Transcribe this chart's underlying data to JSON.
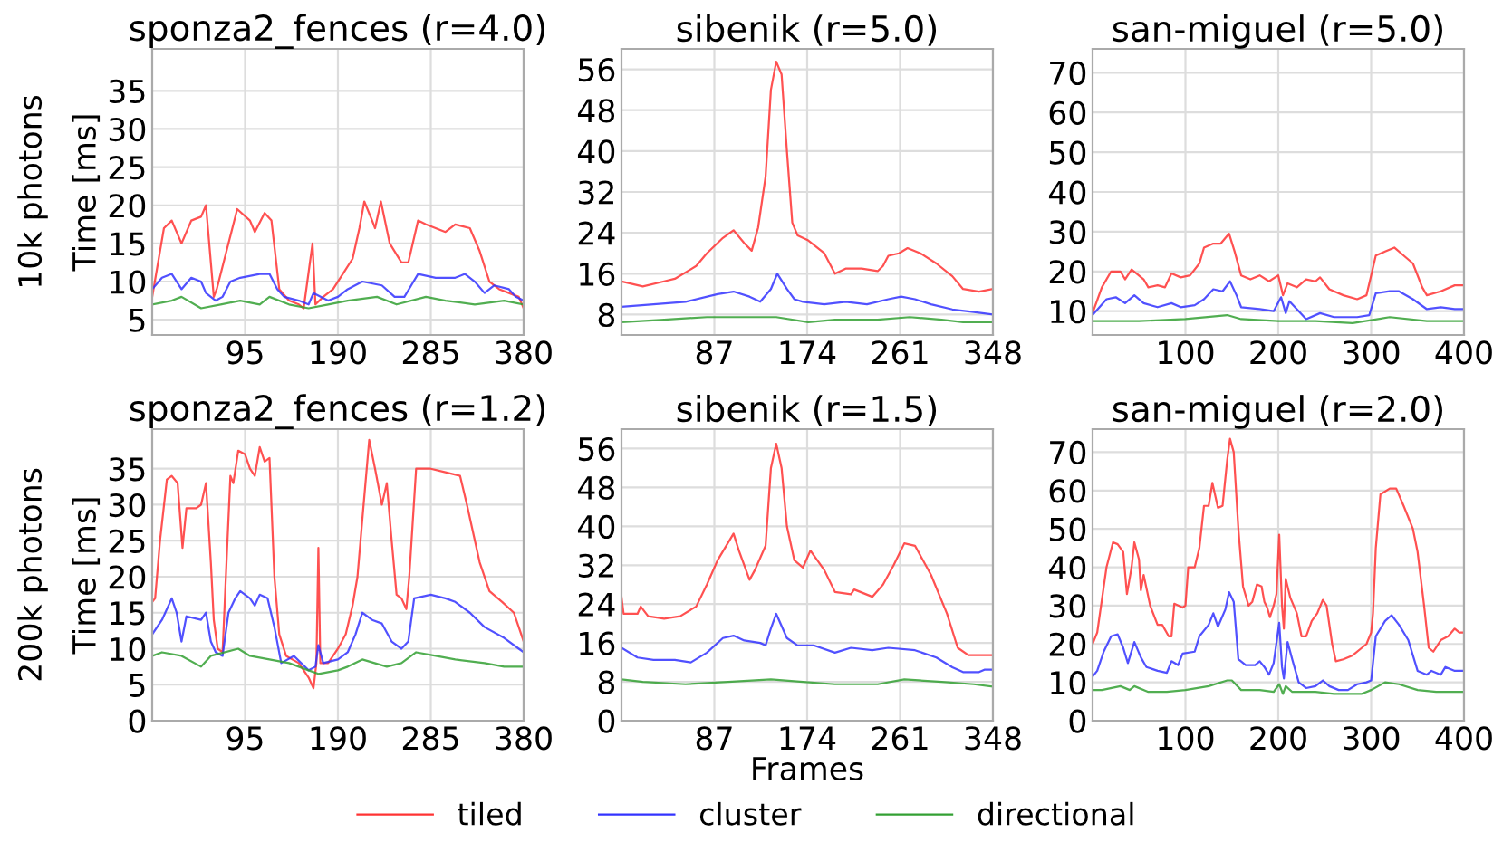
{
  "chart_data": [
    {
      "type": "line",
      "title": "sponza2_fences (r=4.0)",
      "ylabel": "Time [ms]",
      "annotations": [
        "10k photons"
      ],
      "xlim": [
        0,
        380
      ],
      "xticks": [
        95,
        190,
        285,
        380
      ],
      "ylim": [
        3,
        40.5
      ],
      "yticks": [
        5,
        10,
        15,
        20,
        25,
        30,
        35
      ],
      "grid": true,
      "series": [
        {
          "color": "#ff3333",
          "x": [
            0,
            12,
            20,
            30,
            40,
            50,
            55,
            63,
            66,
            87,
            100,
            105,
            115,
            122,
            130,
            140,
            150,
            155,
            164,
            167,
            175,
            185,
            195,
            205,
            212,
            217,
            225,
            228,
            234,
            243,
            255,
            262,
            272,
            280,
            290,
            300,
            310,
            325,
            335,
            345,
            355,
            365,
            375,
            380
          ],
          "values": [
            8,
            17,
            18,
            15,
            18,
            18.5,
            20,
            8,
            9,
            19.5,
            18,
            16.5,
            19,
            18,
            9,
            7.5,
            7,
            6.5,
            15,
            7,
            8,
            9,
            11,
            13,
            17,
            20.5,
            18,
            17,
            20.5,
            15,
            12.5,
            12.5,
            18,
            17.5,
            17,
            16.5,
            17.5,
            17,
            14,
            10,
            9,
            8.5,
            8,
            6.5
          ]
        },
        {
          "color": "#3333ff",
          "x": [
            0,
            10,
            20,
            30,
            40,
            50,
            55,
            65,
            72,
            80,
            90,
            110,
            120,
            128,
            135,
            150,
            160,
            165,
            180,
            190,
            200,
            215,
            235,
            248,
            258,
            265,
            272,
            290,
            310,
            320,
            330,
            340,
            350,
            365,
            372,
            380
          ],
          "values": [
            9,
            10.5,
            11,
            9,
            10.5,
            10,
            8.5,
            7.5,
            8,
            10,
            10.5,
            11,
            11,
            9,
            8,
            7.5,
            7,
            8.5,
            7.5,
            8,
            9,
            10,
            9.5,
            8,
            8,
            9.5,
            11,
            10.5,
            10.5,
            11,
            10,
            8.5,
            9.5,
            9,
            8,
            7.5
          ]
        },
        {
          "color": "#33a033",
          "x": [
            0,
            20,
            30,
            50,
            70,
            90,
            110,
            120,
            140,
            160,
            180,
            200,
            230,
            250,
            280,
            300,
            330,
            360,
            380
          ],
          "values": [
            7,
            7.5,
            8,
            6.5,
            7,
            7.5,
            7,
            8,
            7,
            6.5,
            7,
            7.5,
            8,
            7,
            8,
            7.5,
            7,
            7.5,
            7
          ]
        }
      ]
    },
    {
      "type": "line",
      "title": "sibenik (r=5.0)",
      "xlim": [
        0,
        348
      ],
      "xticks": [
        87,
        174,
        261,
        348
      ],
      "ylim": [
        4,
        60
      ],
      "yticks": [
        8,
        16,
        24,
        32,
        40,
        48,
        56
      ],
      "grid": true,
      "series": [
        {
          "color": "#ff3333",
          "x": [
            0,
            20,
            40,
            50,
            70,
            80,
            95,
            105,
            115,
            122,
            128,
            135,
            140,
            145,
            150,
            155,
            160,
            165,
            175,
            190,
            200,
            210,
            225,
            240,
            245,
            250,
            260,
            268,
            280,
            295,
            310,
            320,
            335,
            348
          ],
          "values": [
            14.5,
            13.5,
            14.5,
            15,
            17.5,
            20,
            23,
            24.5,
            22,
            20.5,
            25,
            35,
            52,
            57.5,
            55,
            40,
            26,
            23.5,
            22.5,
            20,
            16,
            17,
            17,
            16.5,
            17.5,
            19.5,
            20,
            21,
            20,
            18,
            15.5,
            13,
            12.5,
            13
          ]
        },
        {
          "color": "#3333ff",
          "x": [
            0,
            30,
            60,
            90,
            105,
            120,
            130,
            140,
            146,
            155,
            162,
            170,
            190,
            210,
            230,
            250,
            262,
            275,
            290,
            310,
            330,
            348
          ],
          "values": [
            9.5,
            10,
            10.5,
            12,
            12.5,
            11.5,
            10.5,
            13,
            16,
            13,
            11,
            10.5,
            10,
            10.5,
            10,
            11,
            11.5,
            11,
            10,
            9,
            8.5,
            8
          ]
        },
        {
          "color": "#33a033",
          "x": [
            0,
            40,
            80,
            110,
            145,
            175,
            200,
            240,
            270,
            300,
            320,
            348
          ],
          "values": [
            6.5,
            7,
            7.5,
            7.5,
            7.5,
            6.5,
            7,
            7,
            7.5,
            7,
            6.5,
            6.5
          ]
        }
      ]
    },
    {
      "type": "line",
      "title": "san-miguel (r=5.0)",
      "xlim": [
        0,
        400
      ],
      "xticks": [
        100,
        200,
        300,
        400
      ],
      "ylim": [
        4,
        76
      ],
      "yticks": [
        10,
        20,
        30,
        40,
        50,
        60,
        70
      ],
      "grid": true,
      "series": [
        {
          "color": "#ff3333",
          "x": [
            0,
            10,
            20,
            30,
            35,
            42,
            55,
            60,
            70,
            78,
            85,
            95,
            105,
            115,
            120,
            130,
            138,
            147,
            153,
            160,
            170,
            180,
            190,
            200,
            205,
            210,
            220,
            230,
            240,
            245,
            255,
            270,
            285,
            295,
            300,
            305,
            315,
            325,
            335,
            345,
            355,
            360,
            375,
            390,
            400
          ],
          "values": [
            9.5,
            16,
            20,
            20,
            18,
            20.5,
            18,
            16,
            16.5,
            16,
            19.5,
            18.5,
            19,
            22,
            26,
            27,
            27,
            29.5,
            25,
            19,
            18,
            19,
            17.5,
            19,
            14,
            17,
            16,
            18,
            17.5,
            18.5,
            15.5,
            14,
            13,
            14,
            19,
            24,
            25,
            26,
            24,
            22,
            16,
            14,
            15,
            16.5,
            16.5
          ]
        },
        {
          "color": "#3333ff",
          "x": [
            0,
            15,
            25,
            35,
            45,
            55,
            70,
            85,
            95,
            110,
            120,
            130,
            140,
            148,
            155,
            160,
            180,
            195,
            203,
            208,
            212,
            220,
            230,
            245,
            260,
            285,
            298,
            305,
            320,
            330,
            345,
            360,
            375,
            390,
            400
          ],
          "values": [
            9,
            13,
            13.5,
            12,
            14,
            12,
            11,
            12,
            11,
            11.5,
            13,
            15.5,
            15,
            17.5,
            14,
            11,
            10.5,
            10,
            13.5,
            9.5,
            12.5,
            10.5,
            8,
            9.5,
            8.5,
            8.5,
            9,
            14.5,
            15,
            15,
            13,
            10.5,
            11,
            10.5,
            10.5
          ]
        },
        {
          "color": "#33a033",
          "x": [
            0,
            50,
            100,
            145,
            160,
            200,
            240,
            280,
            320,
            360,
            400
          ],
          "values": [
            7.5,
            7.5,
            8,
            9,
            8,
            7.5,
            7.5,
            7,
            8.5,
            7.5,
            7.5
          ]
        }
      ]
    },
    {
      "type": "line",
      "title": "sponza2_fences (r=1.2)",
      "ylabel": "Time [ms]",
      "annotations": [
        "200k photons"
      ],
      "xlim": [
        0,
        380
      ],
      "xticks": [
        95,
        190,
        285,
        380
      ],
      "ylim": [
        0,
        40.5
      ],
      "yticks": [
        0,
        5,
        10,
        15,
        20,
        25,
        30,
        35
      ],
      "grid": true,
      "series": [
        {
          "color": "#ff3333",
          "x": [
            0,
            3,
            8,
            15,
            20,
            26,
            31,
            35,
            45,
            50,
            55,
            60,
            63,
            67,
            72,
            76,
            80,
            83,
            88,
            95,
            100,
            105,
            110,
            115,
            120,
            125,
            130,
            137,
            150,
            160,
            165,
            168,
            170,
            172,
            180,
            190,
            198,
            205,
            210,
            215,
            222,
            228,
            235,
            240,
            245,
            250,
            255,
            260,
            263,
            270,
            285,
            300,
            315,
            322,
            335,
            345,
            358,
            370,
            380
          ],
          "values": [
            16.5,
            17,
            25,
            33.5,
            34,
            33,
            24,
            29.5,
            29.5,
            30,
            33,
            22,
            14,
            10,
            9.5,
            22,
            34,
            33,
            37.5,
            37,
            35,
            34,
            38,
            36,
            36.5,
            20,
            12,
            9,
            8,
            6,
            4.5,
            8,
            24,
            8,
            8,
            10,
            12,
            16,
            20,
            28,
            39,
            35,
            30,
            33,
            25,
            17.5,
            17,
            15.5,
            20,
            35,
            35,
            34.5,
            34,
            30,
            22,
            18,
            16.5,
            15,
            11
          ]
        },
        {
          "color": "#3333ff",
          "x": [
            0,
            10,
            20,
            25,
            30,
            35,
            50,
            55,
            60,
            65,
            72,
            78,
            85,
            90,
            100,
            105,
            110,
            118,
            125,
            132,
            145,
            160,
            167,
            170,
            175,
            190,
            200,
            208,
            215,
            225,
            235,
            245,
            255,
            262,
            268,
            285,
            300,
            310,
            325,
            340,
            360,
            375,
            380
          ],
          "values": [
            12,
            14,
            17,
            15,
            11,
            14.5,
            14,
            15,
            11,
            9.5,
            9,
            15,
            17,
            18,
            17,
            16,
            17.5,
            17,
            13,
            8,
            9,
            7,
            7.5,
            10.5,
            8,
            8.5,
            9.5,
            12,
            15,
            14,
            13.5,
            11,
            10,
            11,
            17,
            17.5,
            17,
            16.5,
            15,
            13,
            11.5,
            10,
            9.5
          ]
        },
        {
          "color": "#33a033",
          "x": [
            0,
            10,
            30,
            50,
            60,
            88,
            100,
            120,
            140,
            160,
            170,
            190,
            200,
            215,
            240,
            255,
            270,
            290,
            310,
            340,
            360,
            380
          ],
          "values": [
            9,
            9.5,
            9,
            7.5,
            9,
            10,
            9,
            8.5,
            8,
            7,
            6.5,
            7,
            7.5,
            8.5,
            7.5,
            8,
            9.5,
            9,
            8.5,
            8,
            7.5,
            7.5
          ]
        }
      ]
    },
    {
      "type": "line",
      "title": "sibenik (r=1.5)",
      "xlabel": "Frames",
      "legend": "bottom",
      "xlim": [
        0,
        348
      ],
      "xticks": [
        87,
        174,
        261,
        348
      ],
      "ylim": [
        0,
        60
      ],
      "yticks": [
        0,
        8,
        16,
        24,
        32,
        40,
        48,
        56
      ],
      "grid": true,
      "series": [
        {
          "name": "tiled",
          "color": "#ff3333",
          "x": [
            0,
            2,
            15,
            18,
            25,
            40,
            55,
            70,
            80,
            90,
            105,
            110,
            120,
            125,
            135,
            140,
            145,
            150,
            155,
            162,
            170,
            177,
            190,
            200,
            215,
            218,
            235,
            245,
            255,
            265,
            275,
            290,
            305,
            315,
            325,
            348
          ],
          "values": [
            25.5,
            22,
            22,
            23.5,
            21.5,
            21,
            21.5,
            23.5,
            28,
            33,
            38.5,
            35,
            29,
            31,
            36,
            52,
            57,
            52,
            40,
            33,
            31.5,
            35,
            31,
            26.5,
            26,
            27,
            25.5,
            28,
            32,
            36.5,
            36,
            30,
            22,
            15,
            13.5,
            13.5
          ]
        },
        {
          "name": "cluster",
          "color": "#3333ff",
          "x": [
            0,
            15,
            30,
            50,
            65,
            80,
            95,
            105,
            115,
            130,
            135,
            140,
            145,
            155,
            165,
            180,
            200,
            215,
            235,
            250,
            275,
            295,
            310,
            320,
            335,
            340,
            348
          ],
          "values": [
            15,
            13,
            12.5,
            12.5,
            12,
            14,
            17,
            17.5,
            16.5,
            16,
            15.5,
            19,
            22,
            17,
            15.5,
            15.5,
            14,
            15,
            14.5,
            15,
            14.5,
            13,
            11,
            10,
            10,
            10.5,
            10.5
          ]
        },
        {
          "name": "directional",
          "color": "#33a033",
          "x": [
            0,
            20,
            60,
            100,
            140,
            170,
            200,
            240,
            265,
            300,
            330,
            348
          ],
          "values": [
            8.5,
            8,
            7.5,
            8,
            8.5,
            8,
            7.5,
            7.5,
            8.5,
            8,
            7.5,
            7
          ]
        }
      ]
    },
    {
      "type": "line",
      "title": "san-miguel (r=2.0)",
      "xlim": [
        0,
        400
      ],
      "xticks": [
        100,
        200,
        300,
        400
      ],
      "ylim": [
        0,
        76
      ],
      "yticks": [
        0,
        10,
        20,
        30,
        40,
        50,
        60,
        70
      ],
      "grid": true,
      "series": [
        {
          "color": "#ff3333",
          "x": [
            0,
            5,
            15,
            22,
            27,
            33,
            37,
            42,
            45,
            50,
            52,
            55,
            62,
            70,
            75,
            82,
            85,
            88,
            97,
            100,
            103,
            110,
            115,
            120,
            125,
            129,
            135,
            140,
            145,
            148,
            152,
            157,
            162,
            168,
            172,
            177,
            182,
            185,
            188,
            191,
            195,
            198,
            201,
            204,
            206,
            208,
            213,
            220,
            225,
            230,
            236,
            242,
            248,
            252,
            258,
            262,
            270,
            280,
            290,
            295,
            300,
            302,
            305,
            310,
            320,
            327,
            335,
            345,
            350,
            357,
            362,
            367,
            375,
            383,
            390,
            395,
            400
          ],
          "values": [
            20,
            23,
            40,
            46.5,
            46,
            44,
            33,
            40,
            46.5,
            42,
            34,
            38,
            30,
            25,
            25,
            22,
            22,
            30.5,
            29.5,
            30,
            40,
            40,
            45,
            56,
            56,
            62,
            55.5,
            56,
            68,
            73.5,
            70,
            50,
            35,
            30,
            31,
            35.5,
            35,
            31,
            29.5,
            27,
            30,
            33,
            48.5,
            30,
            24,
            37,
            32,
            28,
            22,
            22,
            26,
            28,
            31.5,
            30,
            20,
            15.5,
            16,
            17,
            19,
            20,
            23,
            28,
            45,
            59,
            60.5,
            60.5,
            56,
            50,
            44,
            30,
            19,
            18,
            21,
            22,
            24,
            23,
            23
          ]
        },
        {
          "color": "#3333ff",
          "x": [
            0,
            5,
            12,
            20,
            27,
            33,
            38,
            45,
            52,
            58,
            70,
            80,
            85,
            92,
            97,
            110,
            115,
            125,
            130,
            135,
            143,
            147,
            152,
            157,
            165,
            175,
            180,
            185,
            190,
            195,
            201,
            204,
            206,
            210,
            215,
            222,
            230,
            240,
            248,
            255,
            265,
            275,
            285,
            295,
            300,
            305,
            315,
            322,
            330,
            340,
            350,
            360,
            365,
            375,
            380,
            390,
            400
          ],
          "values": [
            11.5,
            13,
            18,
            22,
            22.5,
            19,
            15,
            20.5,
            16.5,
            14,
            13,
            12.5,
            15.5,
            14.5,
            17.5,
            18,
            22,
            25,
            28,
            24.5,
            29,
            33.5,
            31,
            16,
            14.5,
            14.5,
            15.5,
            14,
            12,
            15,
            25.5,
            14,
            11,
            20.5,
            16,
            10,
            8.5,
            9,
            10.5,
            9,
            8,
            8,
            9.5,
            10,
            10.5,
            22,
            26,
            27.5,
            25,
            21,
            13,
            12,
            13,
            12,
            14,
            13,
            13
          ]
        },
        {
          "color": "#33a033",
          "x": [
            0,
            10,
            30,
            40,
            45,
            60,
            80,
            100,
            125,
            145,
            150,
            160,
            180,
            195,
            201,
            205,
            208,
            215,
            240,
            260,
            290,
            300,
            315,
            330,
            350,
            370,
            400
          ],
          "values": [
            8,
            8,
            9,
            8,
            9,
            7.5,
            7.5,
            8,
            9,
            10.5,
            10.5,
            8,
            8,
            7.5,
            9.5,
            7,
            9,
            7.5,
            7.5,
            7,
            7,
            8,
            10,
            9.5,
            8,
            7.5,
            7.5
          ]
        }
      ]
    }
  ]
}
